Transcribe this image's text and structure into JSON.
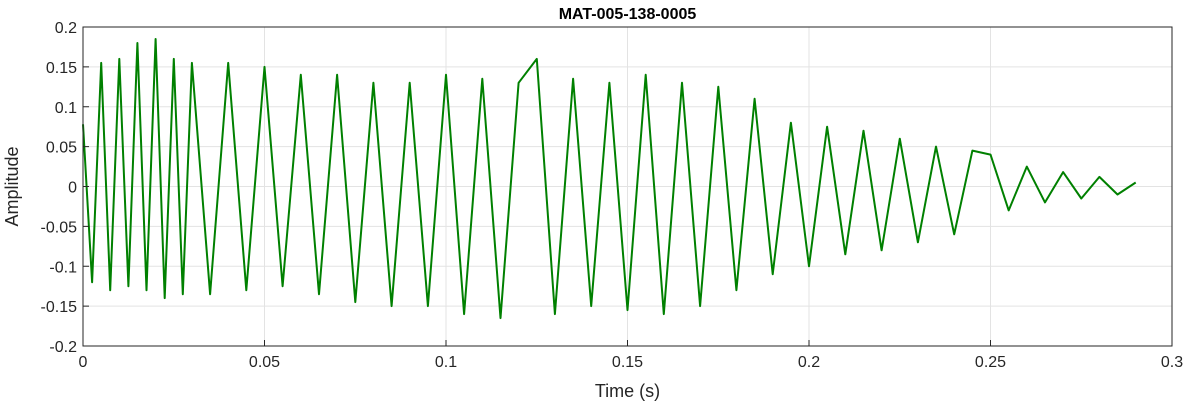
{
  "chart_data": {
    "type": "line",
    "title": "MAT-005-138-0005",
    "xlabel": "Time (s)",
    "ylabel": "Amplitude",
    "xlim": [
      0,
      0.3
    ],
    "ylim": [
      -0.2,
      0.2
    ],
    "x_ticks": [
      "0",
      "0.05",
      "0.1",
      "0.15",
      "0.2",
      "0.25",
      "0.3"
    ],
    "y_ticks": [
      "0.2",
      "0.15",
      "0.1",
      "0.05",
      "0",
      "-0.05",
      "-0.1",
      "-0.15",
      "-0.2"
    ],
    "grid": true,
    "line_color": "#008000",
    "series": [
      {
        "x": [
          0,
          0.0025,
          0.005,
          0.0075,
          0.01,
          0.0125,
          0.015,
          0.0175,
          0.02,
          0.0225,
          0.025,
          0.0275,
          0.03,
          0.035,
          0.04,
          0.045,
          0.05,
          0.055,
          0.06,
          0.065,
          0.07,
          0.075,
          0.08,
          0.085,
          0.09,
          0.095,
          0.1,
          0.105,
          0.11,
          0.115,
          0.12,
          0.125,
          0.13,
          0.135,
          0.14,
          0.145,
          0.15,
          0.155,
          0.16,
          0.165,
          0.17,
          0.175,
          0.18,
          0.185,
          0.19,
          0.195,
          0.2,
          0.205,
          0.21,
          0.215,
          0.22,
          0.225,
          0.23,
          0.235,
          0.24,
          0.245,
          0.25,
          0.255,
          0.26,
          0.265,
          0.27,
          0.275,
          0.28,
          0.285,
          0.29
        ],
        "y": [
          0.078,
          -0.12,
          0.155,
          -0.13,
          0.16,
          -0.125,
          0.18,
          -0.13,
          0.185,
          -0.14,
          0.16,
          -0.135,
          0.155,
          -0.135,
          0.155,
          -0.13,
          0.15,
          -0.125,
          0.14,
          -0.135,
          0.14,
          -0.145,
          0.13,
          -0.15,
          0.13,
          -0.15,
          0.14,
          -0.16,
          0.135,
          -0.165,
          0.13,
          0.16,
          -0.16,
          0.135,
          -0.15,
          0.13,
          -0.155,
          0.14,
          -0.16,
          0.13,
          -0.15,
          0.125,
          -0.13,
          0.11,
          -0.11,
          0.08,
          -0.1,
          0.075,
          -0.085,
          0.07,
          -0.08,
          0.06,
          -0.07,
          0.05,
          -0.06,
          0.045,
          0.04,
          -0.03,
          0.025,
          -0.02,
          0.018,
          -0.015,
          0.012,
          -0.01,
          0.005
        ]
      }
    ]
  }
}
